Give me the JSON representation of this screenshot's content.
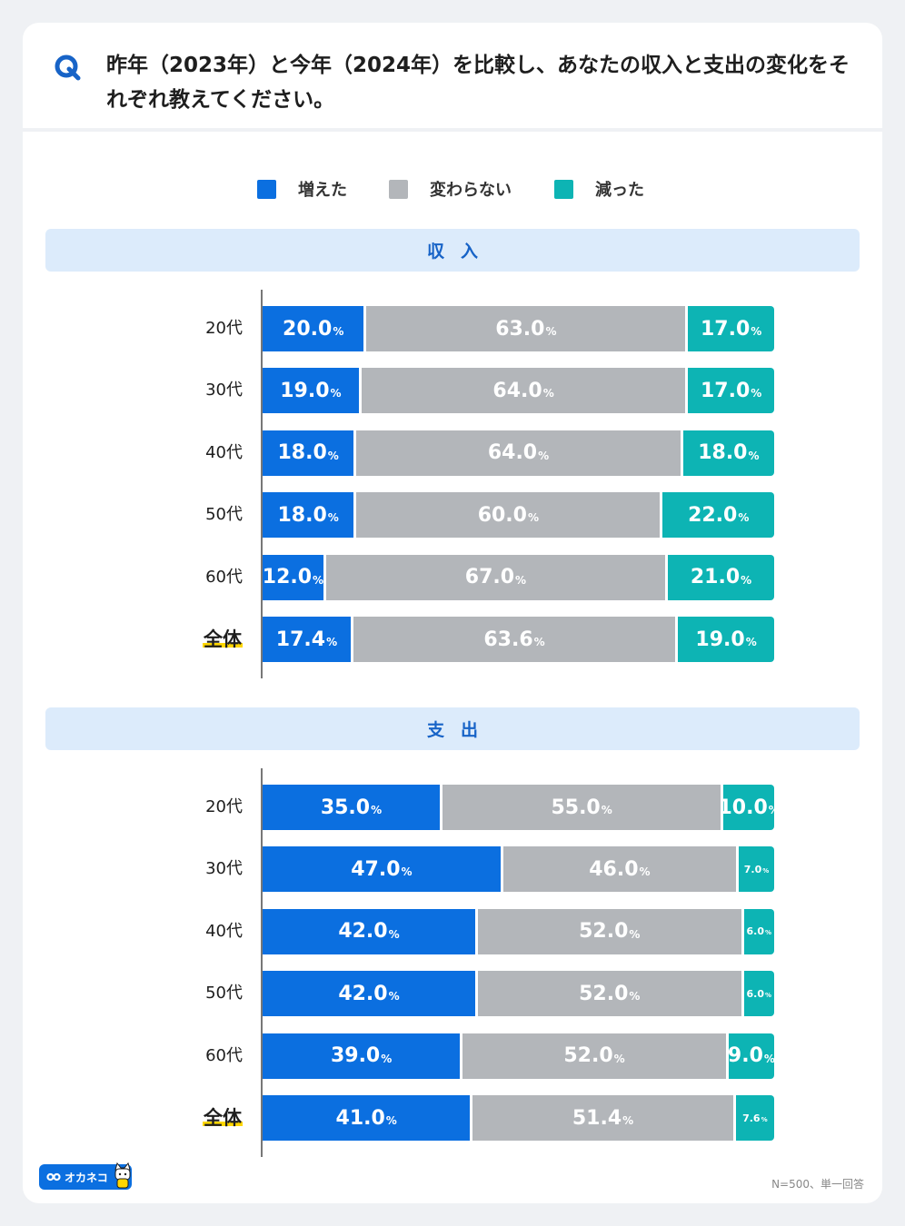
{
  "question": {
    "mark": "Q",
    "text": "昨年（2023年）と今年（2024年）を比較し、あなたの収入と支出の変化をそれぞれ教えてください。"
  },
  "legend": [
    {
      "label": "増えた",
      "color": "#0b6fe0"
    },
    {
      "label": "変わらない",
      "color": "#b3b6ba"
    },
    {
      "label": "減った",
      "color": "#0db4b4"
    }
  ],
  "chart_data": [
    {
      "type": "bar",
      "orientation": "horizontal-stacked-100",
      "title": "収入",
      "categories": [
        "20代",
        "30代",
        "40代",
        "50代",
        "60代",
        "全体"
      ],
      "series": [
        {
          "name": "増えた",
          "values": [
            20.0,
            19.0,
            18.0,
            18.0,
            12.0,
            17.4
          ]
        },
        {
          "name": "変わらない",
          "values": [
            63.0,
            64.0,
            64.0,
            60.0,
            67.0,
            63.6
          ]
        },
        {
          "name": "減った",
          "values": [
            17.0,
            17.0,
            18.0,
            22.0,
            21.0,
            19.0
          ]
        }
      ],
      "labels": [
        [
          "20.0",
          "63.0",
          "17.0"
        ],
        [
          "19.0",
          "64.0",
          "17.0"
        ],
        [
          "18.0",
          "64.0",
          "18.0"
        ],
        [
          "18.0",
          "60.0",
          "22.0"
        ],
        [
          "12.0",
          "67.0",
          "21.0"
        ],
        [
          "17.4",
          "63.6",
          "19.0"
        ]
      ],
      "unit": "%",
      "xlim": [
        0,
        100
      ]
    },
    {
      "type": "bar",
      "orientation": "horizontal-stacked-100",
      "title": "支出",
      "categories": [
        "20代",
        "30代",
        "40代",
        "50代",
        "60代",
        "全体"
      ],
      "series": [
        {
          "name": "増えた",
          "values": [
            35.0,
            47.0,
            42.0,
            42.0,
            39.0,
            41.0
          ]
        },
        {
          "name": "変わらない",
          "values": [
            55.0,
            46.0,
            52.0,
            52.0,
            52.0,
            51.4
          ]
        },
        {
          "name": "減った",
          "values": [
            10.0,
            7.0,
            6.0,
            6.0,
            9.0,
            7.6
          ]
        }
      ],
      "labels": [
        [
          "35.0",
          "55.0",
          "10.0"
        ],
        [
          "47.0",
          "46.0",
          "7.0"
        ],
        [
          "42.0",
          "52.0",
          "6.0"
        ],
        [
          "42.0",
          "52.0",
          "6.0"
        ],
        [
          "39.0",
          "52.0",
          "9.0"
        ],
        [
          "41.0",
          "51.4",
          "7.6"
        ]
      ],
      "unit": "%",
      "xlim": [
        0,
        100
      ]
    }
  ],
  "total_category": "全体",
  "brand": {
    "name": "オカネコ"
  },
  "footnote": "N=500、単一回答"
}
